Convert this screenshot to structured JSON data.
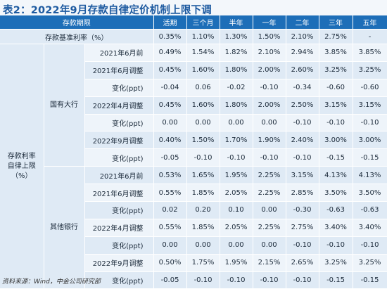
{
  "title": "表2：2022年9月存款自律定价机制上限下调",
  "header": {
    "period": "存款期限",
    "terms": [
      "活期",
      "三个月",
      "半年",
      "一年",
      "二年",
      "三年",
      "五年"
    ]
  },
  "base_rate": {
    "label": "存款基准利率（%）",
    "values": [
      "0.35%",
      "1.10%",
      "1.30%",
      "1.50%",
      "2.10%",
      "2.75%",
      "-"
    ]
  },
  "outer_label": [
    "存款利率",
    "自律上限",
    "（%）"
  ],
  "groups": [
    {
      "name": "国有大行",
      "rows": [
        {
          "label": "2021年6月前",
          "values": [
            "0.49%",
            "1.54%",
            "1.82%",
            "2.10%",
            "2.94%",
            "3.85%",
            "3.85%"
          ]
        },
        {
          "label": "2021年6月调整",
          "values": [
            "0.45%",
            "1.60%",
            "1.80%",
            "2.00%",
            "2.60%",
            "3.25%",
            "3.25%"
          ]
        },
        {
          "label": "变化(ppt)",
          "values": [
            "-0.04",
            "0.06",
            "-0.02",
            "-0.10",
            "-0.34",
            "-0.60",
            "-0.60"
          ]
        },
        {
          "label": "2022年4月调整",
          "values": [
            "0.45%",
            "1.60%",
            "1.80%",
            "2.00%",
            "2.50%",
            "3.15%",
            "3.15%"
          ]
        },
        {
          "label": "变化(ppt)",
          "values": [
            "0.00",
            "0.00",
            "0.00",
            "0.00",
            "-0.10",
            "-0.10",
            "-0.10"
          ]
        },
        {
          "label": "2022年9月调整",
          "values": [
            "0.40%",
            "1.50%",
            "1.70%",
            "1.90%",
            "2.40%",
            "3.00%",
            "3.00%"
          ]
        },
        {
          "label": "变化(ppt)",
          "values": [
            "-0.05",
            "-0.10",
            "-0.10",
            "-0.10",
            "-0.10",
            "-0.15",
            "-0.15"
          ]
        }
      ]
    },
    {
      "name": "其他银行",
      "rows": [
        {
          "label": "2021年6月前",
          "values": [
            "0.53%",
            "1.65%",
            "1.95%",
            "2.25%",
            "3.15%",
            "4.13%",
            "4.13%"
          ]
        },
        {
          "label": "2021年6月调整",
          "values": [
            "0.55%",
            "1.85%",
            "2.05%",
            "2.25%",
            "2.85%",
            "3.50%",
            "3.50%"
          ]
        },
        {
          "label": "变化(ppt)",
          "values": [
            "0.02",
            "0.20",
            "0.10",
            "0.00",
            "-0.30",
            "-0.63",
            "-0.63"
          ]
        },
        {
          "label": "2022年4月调整",
          "values": [
            "0.55%",
            "1.85%",
            "2.05%",
            "2.25%",
            "2.75%",
            "3.40%",
            "3.40%"
          ]
        },
        {
          "label": "变化(ppt)",
          "values": [
            "0.00",
            "0.00",
            "0.00",
            "0.00",
            "-0.10",
            "-0.10",
            "-0.10"
          ]
        },
        {
          "label": "2022年9月调整",
          "values": [
            "0.50%",
            "1.75%",
            "1.95%",
            "2.15%",
            "2.65%",
            "3.25%",
            "3.25%"
          ]
        },
        {
          "label": "变化(ppt)",
          "values": [
            "-0.05",
            "-0.10",
            "-0.10",
            "-0.10",
            "-0.10",
            "-0.15",
            "-0.15"
          ]
        }
      ]
    }
  ],
  "footer": "资料来源：Wind，中金公司研究部"
}
